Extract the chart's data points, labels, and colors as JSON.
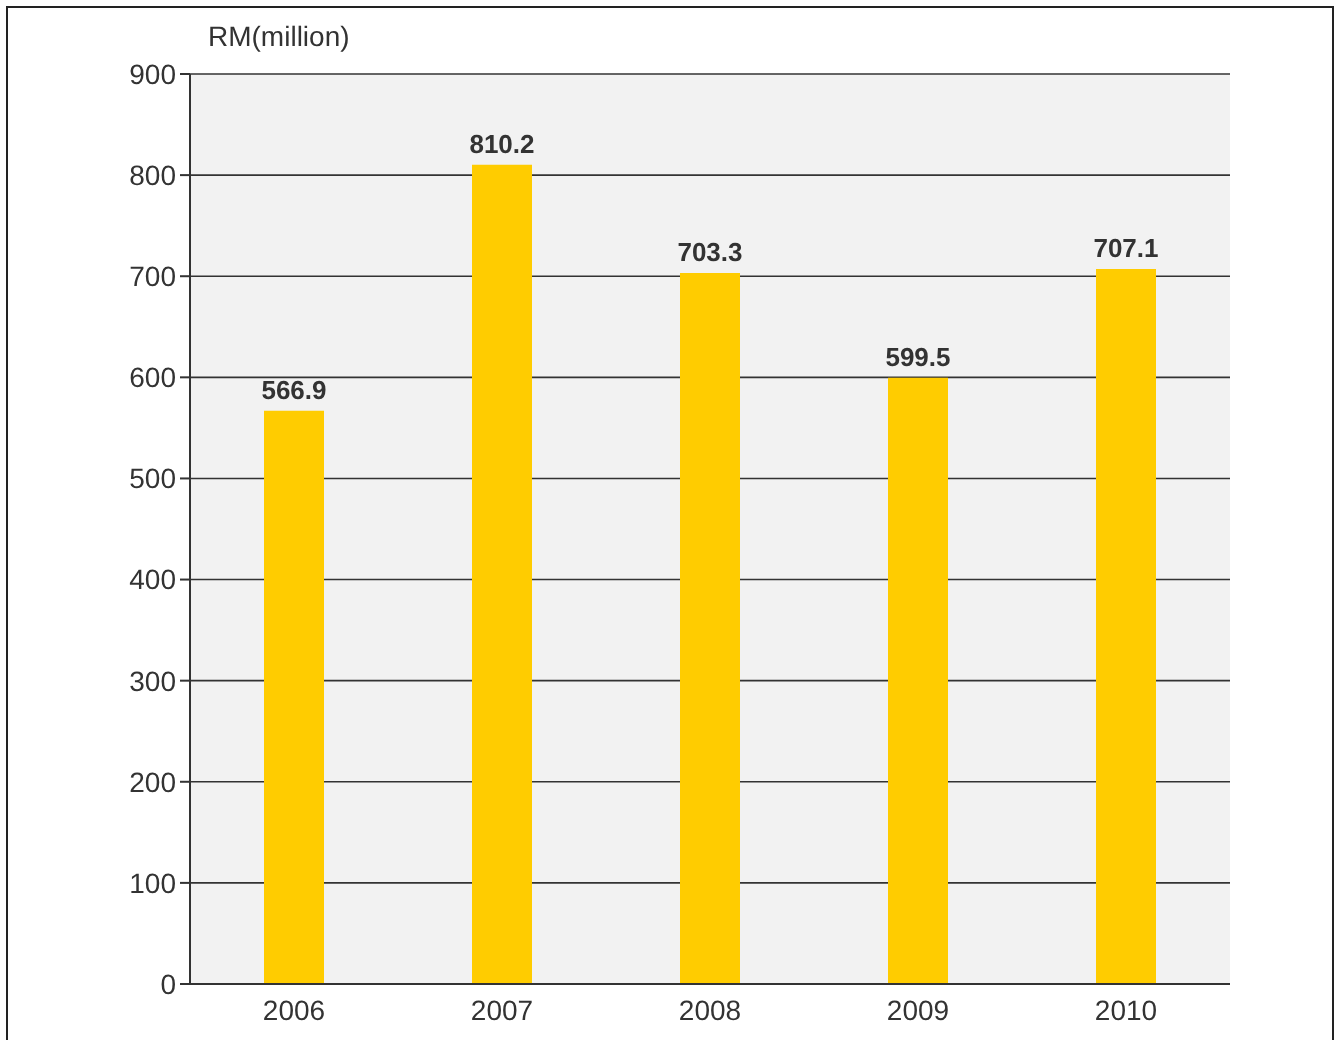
{
  "chart_data": {
    "type": "bar",
    "ylabel": "RM(million)",
    "categories": [
      "2006",
      "2007",
      "2008",
      "2009",
      "2010"
    ],
    "values": [
      566.9,
      810.2,
      703.3,
      599.5,
      707.1
    ],
    "color": "#ffcc00",
    "ylim": [
      0,
      900
    ],
    "yticks": [
      0,
      100,
      200,
      300,
      400,
      500,
      600,
      700,
      800,
      900
    ],
    "grid": "y",
    "data_labels": true
  }
}
